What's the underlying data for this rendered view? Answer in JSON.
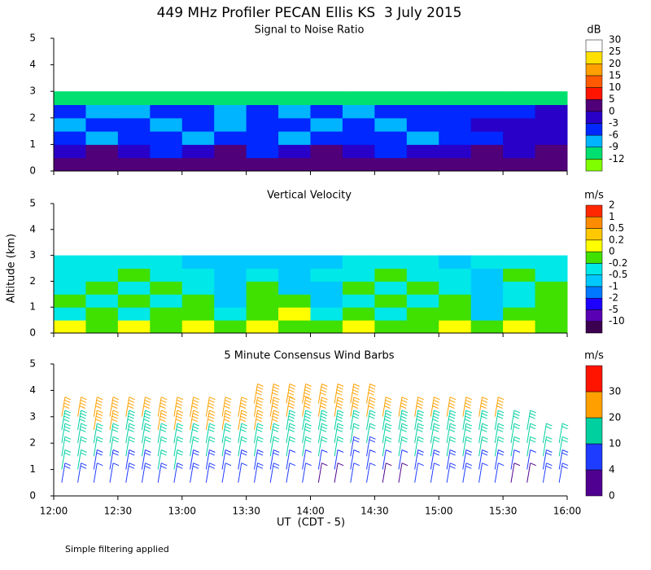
{
  "title": "449 MHz Profiler PECAN Ellis KS  3 July 2015",
  "footnote": "Simple filtering applied",
  "chart_data": [
    {
      "type": "heatmap",
      "title": "Signal to Noise Ratio",
      "unit": "dB",
      "xlim": [
        "12:00",
        "16:00"
      ],
      "ylim": [
        0,
        5
      ],
      "yticks": [
        0,
        1,
        2,
        3,
        4,
        5
      ],
      "x": [
        "12:00",
        "12:15",
        "12:30",
        "12:45",
        "13:00",
        "13:15",
        "13:30",
        "13:45",
        "14:00",
        "14:15",
        "14:30",
        "14:45",
        "15:00",
        "15:15",
        "15:30",
        "15:45"
      ],
      "y": [
        0.25,
        0.75,
        1.25,
        1.75,
        2.25,
        2.75
      ],
      "values": [
        [
          6,
          6,
          6,
          6,
          7,
          6,
          6,
          6,
          6,
          6,
          6,
          6,
          6,
          6,
          6,
          6
        ],
        [
          2,
          6,
          2,
          -1,
          2,
          6,
          -1,
          2,
          6,
          2,
          -1,
          2,
          2,
          6,
          2,
          6
        ],
        [
          -2,
          -4,
          -1,
          -2,
          -4,
          -2,
          -1,
          -4,
          -2,
          -1,
          -2,
          -4,
          -2,
          -1,
          2,
          2
        ],
        [
          -4,
          -1,
          -2,
          -4,
          -2,
          -4,
          -1,
          -2,
          -5,
          -2,
          -4,
          -1,
          -2,
          2,
          2,
          2
        ],
        [
          -2,
          -4,
          -5,
          -2,
          -2,
          -4,
          -2,
          -5,
          -2,
          -4,
          -2,
          -2,
          -1,
          -2,
          -1,
          2
        ],
        [
          -8,
          -8,
          -7,
          -8,
          -8,
          -8,
          -7,
          -8,
          -8,
          -8,
          -7,
          -8,
          -8,
          -8,
          -8,
          -8
        ]
      ],
      "colorbar": {
        "levels": [
          -12,
          -9,
          -6,
          -3,
          0,
          5,
          10,
          15,
          20,
          25,
          30
        ],
        "colors": [
          "#80ff00",
          "#00e070",
          "#00b4ff",
          "#0028ff",
          "#2800c8",
          "#500078",
          "#ff1400",
          "#ff5a00",
          "#ffa000",
          "#ffe000",
          "#ffffff"
        ]
      }
    },
    {
      "type": "heatmap",
      "title": "Vertical Velocity",
      "unit": "m/s",
      "ylabel": "Altitude (km)",
      "xlim": [
        "12:00",
        "16:00"
      ],
      "ylim": [
        0,
        5
      ],
      "yticks": [
        0,
        1,
        2,
        3,
        4,
        5
      ],
      "x": [
        "12:00",
        "12:15",
        "12:30",
        "12:45",
        "13:00",
        "13:15",
        "13:30",
        "13:45",
        "14:00",
        "14:15",
        "14:30",
        "14:45",
        "15:00",
        "15:15",
        "15:30",
        "15:45"
      ],
      "y": [
        0.25,
        0.75,
        1.25,
        1.75,
        2.25,
        2.75
      ],
      "values": [
        [
          0.3,
          0.1,
          0.3,
          0.1,
          0.3,
          0.1,
          0.3,
          0.1,
          0.1,
          0.3,
          0.1,
          0.1,
          0.3,
          0.1,
          0.3,
          0.1
        ],
        [
          -0.1,
          0.1,
          -0.1,
          0.1,
          0.1,
          -0.1,
          0.1,
          0.3,
          -0.1,
          0.1,
          -0.1,
          0.1,
          0.1,
          -0.3,
          0.1,
          0.1
        ],
        [
          0.1,
          -0.1,
          0.1,
          -0.1,
          0.1,
          -0.3,
          0.1,
          0.1,
          -0.3,
          -0.1,
          0.1,
          -0.1,
          0.1,
          -0.3,
          -0.1,
          0.1
        ],
        [
          -0.1,
          0.1,
          -0.1,
          0.1,
          -0.1,
          -0.3,
          0.1,
          -0.3,
          -0.3,
          0.1,
          -0.1,
          0.1,
          -0.1,
          -0.3,
          -0.1,
          0.1
        ],
        [
          -0.1,
          -0.1,
          0.1,
          -0.1,
          -0.1,
          -0.3,
          -0.1,
          -0.3,
          -0.1,
          -0.1,
          0.1,
          -0.1,
          -0.1,
          -0.3,
          0.1,
          -0.1
        ],
        [
          -0.1,
          -0.1,
          -0.1,
          -0.1,
          -0.3,
          -0.3,
          -0.3,
          -0.3,
          -0.3,
          -0.1,
          -0.1,
          -0.1,
          -0.3,
          -0.1,
          -0.1,
          -0.1
        ]
      ],
      "colorbar": {
        "levels": [
          -10,
          -5,
          -2,
          -1,
          -0.5,
          -0.2,
          0,
          0.2,
          0.5,
          1,
          2
        ],
        "colors": [
          "#3c0050",
          "#5a00b4",
          "#1e00ff",
          "#0078ff",
          "#00c8ff",
          "#00e8e8",
          "#40e000",
          "#ffff00",
          "#ffc800",
          "#ff8c00",
          "#ff2800"
        ]
      }
    },
    {
      "type": "barbs",
      "title": "5 Minute Consensus Wind Barbs",
      "unit": "m/s",
      "xlabel": "UT  (CDT - 5)",
      "xlim": [
        "12:00",
        "16:00"
      ],
      "ylim": [
        0,
        5
      ],
      "yticks": [
        0,
        1,
        2,
        3,
        4,
        5
      ],
      "xticks": [
        "12:00",
        "12:30",
        "13:00",
        "13:30",
        "14:00",
        "14:30",
        "15:00",
        "15:30",
        "16:00"
      ],
      "x": [
        "12:00",
        "12:15",
        "12:30",
        "12:45",
        "13:00",
        "13:15",
        "13:30",
        "13:45",
        "14:00",
        "14:15",
        "14:30",
        "14:45",
        "15:00",
        "15:15",
        "15:30",
        "15:45"
      ],
      "y": [
        0.75,
        1.25,
        1.75,
        2.25,
        2.75,
        3.25,
        3.75
      ],
      "values": [
        [
          8,
          7,
          8,
          9,
          8,
          7,
          8,
          6,
          3,
          6,
          3,
          7,
          8,
          7,
          3,
          8
        ],
        [
          10,
          9,
          9,
          10,
          9,
          8,
          9,
          7,
          6,
          5,
          7,
          8,
          9,
          8,
          7,
          9
        ],
        [
          12,
          12,
          11,
          12,
          12,
          11,
          12,
          11,
          10,
          9,
          10,
          11,
          11,
          12,
          11,
          10
        ],
        [
          14,
          15,
          14,
          15,
          14,
          14,
          15,
          14,
          13,
          12,
          13,
          14,
          14,
          13,
          12,
          12
        ],
        [
          18,
          20,
          19,
          20,
          21,
          20,
          20,
          19,
          18,
          17,
          18,
          19,
          18,
          17,
          16,
          null
        ],
        [
          21,
          22,
          22,
          21,
          22,
          21,
          22,
          22,
          21,
          20,
          21,
          22,
          21,
          20,
          null,
          null
        ],
        [
          null,
          null,
          null,
          null,
          null,
          null,
          22,
          23,
          22,
          21,
          null,
          null,
          null,
          null,
          null,
          null
        ]
      ],
      "colorbar": {
        "levels": [
          0,
          4,
          10,
          20,
          30
        ],
        "colors": [
          "#500090",
          "#1e3cff",
          "#00d0a0",
          "#ffa000",
          "#ff1400"
        ]
      }
    }
  ]
}
